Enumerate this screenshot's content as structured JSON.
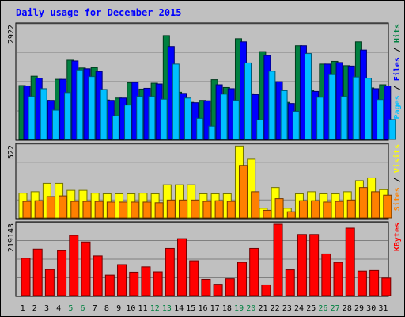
{
  "chart_data": {
    "type": "bar",
    "title": "Daily usage for December 2015",
    "colors": {
      "hits": "#008040",
      "files": "#0000ff",
      "pages": "#00c0ff",
      "visits": "#ffff00",
      "sites": "#ff8000",
      "kbytes": "#ff0000",
      "weekend_day_label": "#008040",
      "day_label": "#000000",
      "background": "#c0c0c0"
    },
    "days": [
      "1",
      "2",
      "3",
      "4",
      "5",
      "6",
      "7",
      "8",
      "9",
      "10",
      "11",
      "12",
      "13",
      "14",
      "15",
      "16",
      "17",
      "18",
      "19",
      "20",
      "21",
      "22",
      "23",
      "24",
      "25",
      "26",
      "27",
      "28",
      "29",
      "30",
      "31"
    ],
    "weekend_days": [
      "5",
      "6",
      "12",
      "13",
      "19",
      "20",
      "26",
      "27"
    ],
    "panels": [
      {
        "id": "hits",
        "ymax_label": "2922",
        "ylim": [
          0,
          2922
        ],
        "legend": [
          {
            "text": "Pages",
            "color": "#00c0ff"
          },
          {
            "text": " / ",
            "color": "#000000"
          },
          {
            "text": "Files",
            "color": "#0000ff"
          },
          {
            "text": " / ",
            "color": "#000000"
          },
          {
            "text": "Hits",
            "color": "#008040"
          }
        ],
        "series": [
          {
            "name": "Hits",
            "color": "#008040",
            "values": [
              1380,
              1620,
              1000,
              1540,
              2030,
              1830,
              1840,
              1010,
              1060,
              1450,
              1290,
              1440,
              2660,
              1210,
              950,
              1000,
              1530,
              1330,
              2580,
              1170,
              2250,
              1480,
              950,
              2400,
              1260,
              1930,
              2000,
              1890,
              2500,
              1320,
              1400
            ]
          },
          {
            "name": "Files",
            "color": "#0000ff",
            "values": [
              1370,
              1570,
              1000,
              1540,
              2010,
              1810,
              1740,
              1000,
              1060,
              1460,
              1310,
              1420,
              2380,
              1180,
              940,
              990,
              1400,
              1300,
              2500,
              1150,
              2150,
              1480,
              920,
              2400,
              1230,
              1930,
              1970,
              1880,
              2290,
              1300,
              1370
            ]
          },
          {
            "name": "Pages",
            "color": "#00c0ff",
            "values": [
              1100,
              1300,
              750,
              1200,
              1780,
              1610,
              1280,
              600,
              880,
              1100,
              1100,
              1030,
              1930,
              1060,
              540,
              340,
              1160,
              1000,
              1960,
              500,
              1750,
              1250,
              720,
              2200,
              1080,
              1660,
              1100,
              1600,
              1570,
              1020,
              510
            ]
          }
        ]
      },
      {
        "id": "visits",
        "ymax_label": "522",
        "ylim": [
          0,
          522
        ],
        "legend": [
          {
            "text": "Sites",
            "color": "#ff8000"
          },
          {
            "text": " / ",
            "color": "#000000"
          },
          {
            "text": "Visits",
            "color": "#ffff00"
          }
        ],
        "series": [
          {
            "name": "Visits",
            "color": "#ffff00",
            "values": [
              180,
              190,
              250,
              250,
              200,
              200,
              180,
              175,
              175,
              175,
              180,
              175,
              240,
              240,
              240,
              175,
              175,
              175,
              520,
              425,
              70,
              220,
              70,
              175,
              190,
              175,
              175,
              190,
              270,
              290,
              205
            ]
          },
          {
            "name": "Sites",
            "color": "#ff8000",
            "values": [
              120,
              125,
              155,
              160,
              120,
              120,
              120,
              115,
              115,
              115,
              115,
              110,
              130,
              130,
              130,
              120,
              125,
              120,
              380,
              190,
              55,
              140,
              45,
              125,
              125,
              115,
              120,
              130,
              220,
              190,
              165
            ]
          }
        ]
      },
      {
        "id": "kbytes",
        "ymax_label": "219143",
        "ylim": [
          0,
          219143
        ],
        "legend": [
          {
            "text": "KBytes",
            "color": "#ff0000"
          }
        ],
        "series": [
          {
            "name": "KBytes",
            "color": "#ff0000",
            "values": [
              115000,
              143000,
              80000,
              138000,
              185000,
              165000,
              122000,
              63000,
              95000,
              72000,
              88000,
              73000,
              145000,
              175000,
              107000,
              50000,
              35000,
              52000,
              102000,
              145000,
              33000,
              220000,
              79000,
              188000,
              188000,
              128000,
              102000,
              207000,
              75000,
              77000,
              54000
            ]
          }
        ]
      }
    ]
  }
}
